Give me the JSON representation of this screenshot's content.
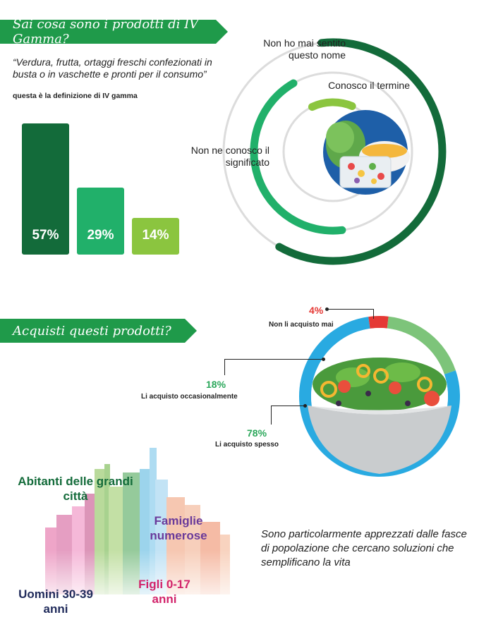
{
  "section1": {
    "banner": "Sai cosa sono i prodotti di IV Gamma?",
    "quote": "“Verdura, frutta, ortaggi freschi confezionati in busta o in vaschette e pronti per il consumo”",
    "note": "questa è la definizione di IV gamma",
    "ring_labels": {
      "outer": "Non ho mai sentito questo nome",
      "inner": "Conosco il termine",
      "middle": "Non ne conosco il significato"
    }
  },
  "section2": {
    "banner": "Acquisti questi prodotti?",
    "tagline": "Sono particolarmente apprezzati dalle fasce di popolazione che cercano soluzioni che semplificano la vita",
    "segment_labels": {
      "never": "Non li acquisto mai",
      "occasional": "Li acquisto occasionalmente",
      "often": "Li acquisto spesso"
    }
  },
  "demographics": {
    "big_cities": "Abitanti delle grandi città",
    "large_families": "Famiglie numerose",
    "men": "Uomini 30-39 anni",
    "children": "Figli 0-17 anni"
  },
  "colors": {
    "dark_green": "#136b3a",
    "mid_green": "#21b06a",
    "light_green": "#8bc53f",
    "blue": "#29aae1",
    "red": "#e53935",
    "soft_green": "#7dc47a"
  },
  "chart_data": [
    {
      "type": "bar",
      "categories": [
        "Non ho mai sentito questo nome",
        "Non ne conosco il significato",
        "Conosco il termine"
      ],
      "values": [
        57,
        29,
        14
      ],
      "value_labels": [
        "57%",
        "29%",
        "14%"
      ]
    },
    {
      "type": "pie",
      "categories": [
        "Non li acquisto mai",
        "Li acquisto occasionalmente",
        "Li acquisto spesso"
      ],
      "values": [
        4,
        18,
        78
      ],
      "value_labels": [
        "4%",
        "18%",
        "78%"
      ]
    }
  ]
}
